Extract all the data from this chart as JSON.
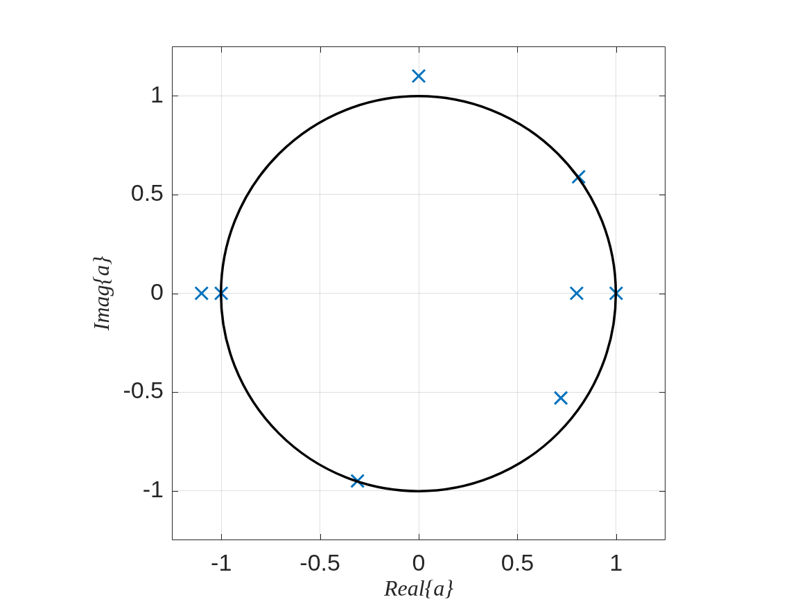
{
  "chart_data": {
    "type": "scatter",
    "xlabel": "Real{a}",
    "ylabel": "Imag{a}",
    "xlim": [
      -1.25,
      1.25
    ],
    "ylim": [
      -1.25,
      1.25
    ],
    "xticks": [
      -1,
      -0.5,
      0,
      0.5,
      1
    ],
    "yticks": [
      -1,
      -0.5,
      0,
      0.5,
      1
    ],
    "grid": true,
    "series": [
      {
        "color": "#0072bd",
        "marker": "cross",
        "x": [
          0,
          0.81,
          0.8,
          1,
          0.72,
          -0.31,
          -1,
          -1.1
        ],
        "values": [
          1.1,
          0.59,
          0,
          0,
          -0.53,
          -0.95,
          0,
          0
        ]
      }
    ]
  }
}
